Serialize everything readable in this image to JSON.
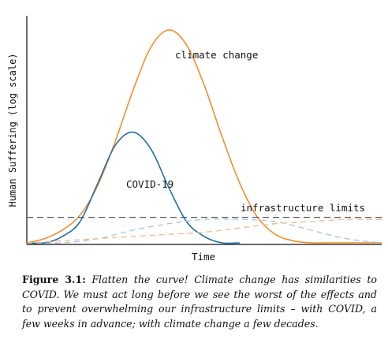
{
  "chart_data": {
    "type": "line",
    "title": "",
    "xlabel": "Time",
    "ylabel": "Human Suffering (log scale)",
    "xlim": [
      0,
      100
    ],
    "ylim": [
      0,
      100
    ],
    "grid": false,
    "legend": "none",
    "series": [
      {
        "name": "climate change",
        "color": "#f28e2b",
        "style": "solid",
        "x": [
          0,
          5,
          10,
          15,
          20,
          25,
          30,
          35,
          40,
          45,
          50,
          55,
          60,
          65,
          70,
          75,
          80,
          85,
          90,
          95,
          100
        ],
        "y": [
          0,
          2,
          6,
          13,
          27,
          48,
          72,
          92,
          100,
          93,
          74,
          50,
          28,
          12,
          4,
          1,
          0,
          0,
          0,
          0,
          0
        ]
      },
      {
        "name": "COVID-19",
        "color": "#1f6fa8",
        "style": "solid",
        "x": [
          0,
          5,
          10,
          15,
          20,
          25,
          30,
          35,
          40,
          45,
          50,
          55,
          60
        ],
        "y": [
          0,
          0,
          3,
          10,
          28,
          46,
          52,
          44,
          26,
          10,
          3,
          0,
          0
        ]
      },
      {
        "name": "",
        "color": "#a9c4e4",
        "style": "dashed",
        "x": [
          0,
          10,
          20,
          30,
          40,
          50,
          60,
          70,
          80,
          90,
          100
        ],
        "y": [
          0,
          0,
          2,
          6,
          9,
          11,
          11,
          10,
          6,
          2,
          0
        ]
      },
      {
        "name": "",
        "color": "#f5b98a",
        "style": "dashed",
        "x": [
          0,
          10,
          20,
          30,
          40,
          50,
          60,
          70,
          80,
          90,
          100
        ],
        "y": [
          0,
          1,
          2,
          3,
          4,
          5,
          7,
          9,
          10,
          11,
          11
        ]
      }
    ],
    "reference_line": {
      "label": "infrastructure limits",
      "y": 12,
      "color": "#555555",
      "style": "dashed"
    },
    "annotations": {
      "climate": "climate change",
      "covid": "COVID-19"
    }
  },
  "caption": {
    "label": "Figure 3.1:",
    "text": "Flatten the curve!  Climate change has similarities to COVID. We must act long before we see the worst of the effects and to prevent overwhelming our infrastructure limits – with COVID, a few weeks in advance; with climate change a few decades."
  }
}
